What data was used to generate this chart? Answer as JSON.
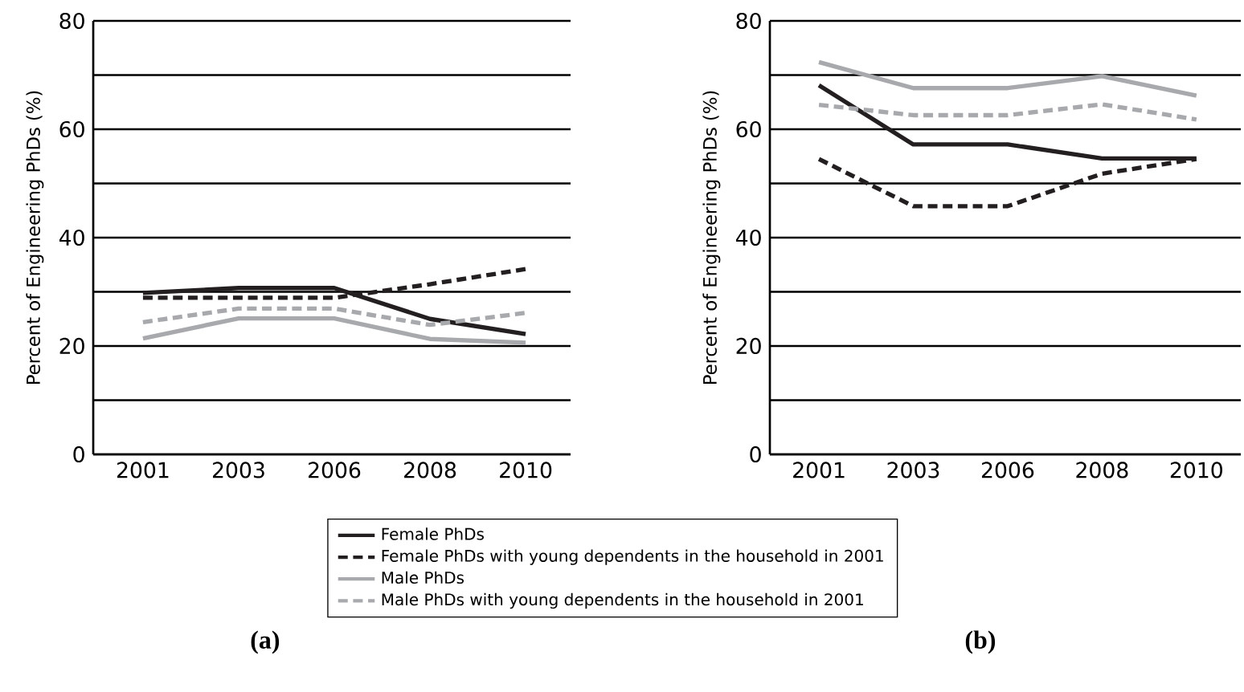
{
  "chart_data": [
    {
      "type": "line",
      "title": "(a)",
      "ylabel": "Percent of Engineering PhDs (%)",
      "categories": [
        "2001",
        "2003",
        "2006",
        "2008",
        "2010"
      ],
      "ylim": [
        0,
        80
      ],
      "yticks": [
        0,
        {
          "value": 10,
          "label": null
        },
        20,
        {
          "value": 30,
          "label": null
        },
        40,
        {
          "value": 50,
          "label": null
        },
        60,
        {
          "value": 70,
          "label": null
        },
        80
      ],
      "grid": "y",
      "legend": "bottom",
      "marker": "none",
      "series": [
        {
          "name": "Female PhDs",
          "color": "#231f20",
          "line_style": "solid",
          "values": [
            29.8,
            30.7,
            30.7,
            25.0,
            22.2
          ]
        },
        {
          "name": "Female PhDs with young dependents in the household in 2001",
          "color": "#231f20",
          "line_style": "dashed",
          "values": [
            28.9,
            28.9,
            28.9,
            31.4,
            34.2
          ]
        },
        {
          "name": "Male PhDs",
          "color": "#a7a9ac",
          "line_style": "solid",
          "values": [
            21.4,
            25.1,
            25.1,
            21.3,
            20.6
          ]
        },
        {
          "name": "Male PhDs with young dependents in the household in 2001",
          "color": "#a7a9ac",
          "line_style": "dashed",
          "values": [
            24.4,
            26.9,
            26.9,
            23.9,
            26.1
          ]
        }
      ]
    },
    {
      "type": "line",
      "title": "(b)",
      "ylabel": "Percent of Engineering PhDs (%)",
      "categories": [
        "2001",
        "2003",
        "2006",
        "2008",
        "2010"
      ],
      "ylim": [
        0,
        80
      ],
      "yticks": [
        0,
        {
          "value": 10,
          "label": null
        },
        20,
        {
          "value": 30,
          "label": null
        },
        40,
        {
          "value": 50,
          "label": null
        },
        60,
        {
          "value": 70,
          "label": null
        },
        80
      ],
      "grid": "y",
      "marker": "none",
      "series": [
        {
          "color": "#231f20",
          "line_style": "solid",
          "values": [
            68.1,
            57.2,
            57.2,
            54.6,
            54.6
          ]
        },
        {
          "color": "#231f20",
          "line_style": "dashed",
          "values": [
            54.5,
            45.8,
            45.8,
            51.8,
            54.5
          ]
        },
        {
          "color": "#a7a9ac",
          "line_style": "solid",
          "values": [
            72.4,
            67.6,
            67.6,
            69.8,
            66.2
          ]
        },
        {
          "color": "#a7a9ac",
          "line_style": "dashed",
          "values": [
            64.5,
            62.6,
            62.6,
            64.6,
            61.8
          ]
        }
      ]
    }
  ]
}
